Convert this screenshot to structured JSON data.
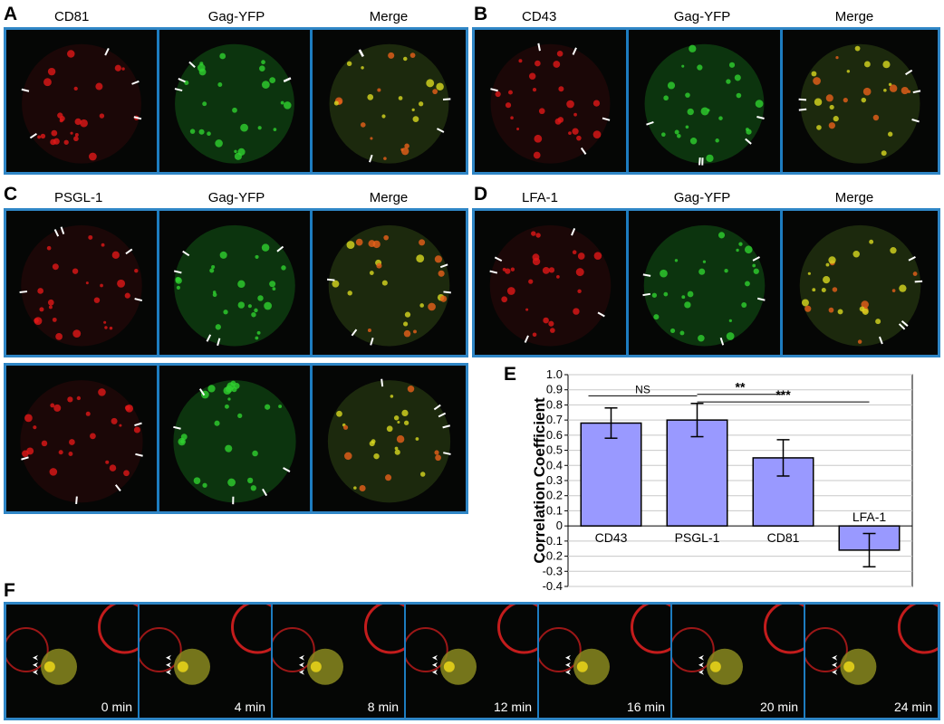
{
  "panels": {
    "A": {
      "letter": "A",
      "labels": [
        "CD81",
        "Gag-YFP",
        "Merge"
      ]
    },
    "B": {
      "letter": "B",
      "labels": [
        "CD43",
        "Gag-YFP",
        "Merge"
      ]
    },
    "C": {
      "letter": "C",
      "labels": [
        "PSGL-1",
        "Gag-YFP",
        "Merge"
      ]
    },
    "D": {
      "letter": "D",
      "labels": [
        "LFA-1",
        "Gag-YFP",
        "Merge"
      ]
    },
    "E": {
      "letter": "E"
    },
    "F": {
      "letter": "F",
      "times": [
        "0 min",
        "4 min",
        "8 min",
        "12 min",
        "16 min",
        "20 min",
        "24 min"
      ]
    }
  },
  "colors": {
    "frame": "#2f86c6",
    "red_channel": "#e01818",
    "green_channel": "#2fd12f",
    "merge_yellow": "#d8d820",
    "bar_fill": "#9999ff",
    "arrow": "#ffffff"
  },
  "chart_data": {
    "type": "bar",
    "categories": [
      "CD43",
      "PSGL-1",
      "CD81",
      "LFA-1"
    ],
    "values": [
      0.68,
      0.7,
      0.45,
      -0.16
    ],
    "errors": [
      0.1,
      0.11,
      0.12,
      0.11
    ],
    "ylabel": "Correlation Coefficient",
    "ylim": [
      -0.4,
      1.0
    ],
    "yticks": [
      "1.0",
      "0.9",
      "0.8",
      "0.7",
      "0.6",
      "0.5",
      "0.4",
      "0.3",
      "0.2",
      "0.1",
      "0",
      "-0.1",
      "-0.2",
      "-0.3",
      "-0.4"
    ],
    "grid": true,
    "significance": [
      {
        "from": "CD43",
        "to": "PSGL-1",
        "label": "NS"
      },
      {
        "from": "PSGL-1",
        "to": "CD81",
        "label": "**"
      },
      {
        "from": "PSGL-1",
        "to": "LFA-1",
        "label": "***"
      }
    ]
  }
}
